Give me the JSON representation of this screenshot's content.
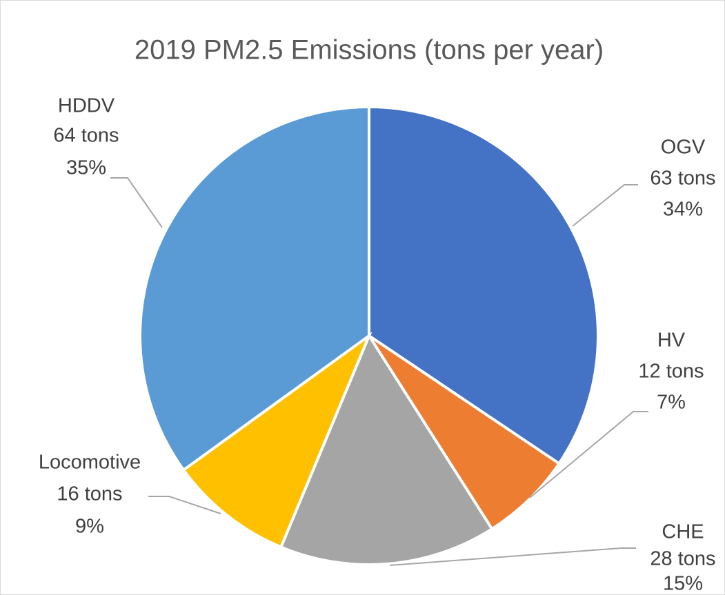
{
  "chart_data": {
    "type": "pie",
    "title": "2019 PM2.5 Emissions (tons per year)",
    "categories": [
      "OGV",
      "HV",
      "CHE",
      "Locomotive",
      "HDDV"
    ],
    "values": [
      63,
      12,
      28,
      16,
      64
    ],
    "value_labels": [
      "63 tons",
      "12 tons",
      "28 tons",
      "16 tons",
      "64 tons"
    ],
    "percent_labels": [
      "34%",
      "7%",
      "15%",
      "9%",
      "35%"
    ],
    "colors": [
      "#4472c4",
      "#ed7d31",
      "#a5a5a5",
      "#ffc000",
      "#5b9bd5"
    ]
  }
}
